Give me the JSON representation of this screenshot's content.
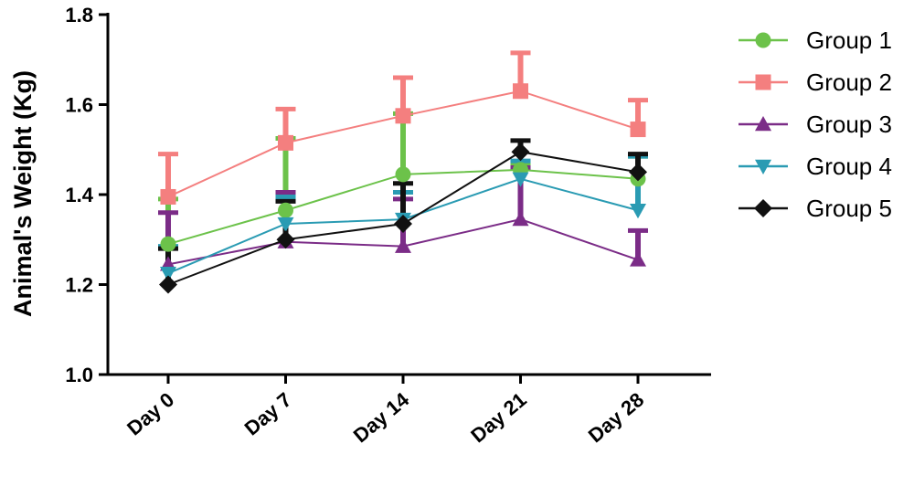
{
  "chart_data": {
    "type": "line",
    "title": "",
    "xlabel": "",
    "ylabel": "Animal's Weight (Kg)",
    "categories": [
      "Day 0",
      "Day 7",
      "Day 14",
      "Day 21",
      "Day 28"
    ],
    "ylim": [
      1.0,
      1.8
    ],
    "yticks": [
      "1.0",
      "1.2",
      "1.4",
      "1.6",
      "1.8"
    ],
    "grid": false,
    "legend_position": "right",
    "series": [
      {
        "name": "Group 1",
        "color": "#6cc24a",
        "marker": "circle",
        "values": [
          1.29,
          1.365,
          1.445,
          1.455,
          1.435
        ],
        "errors": [
          0.1,
          0.16,
          0.135,
          0.01,
          0.05
        ]
      },
      {
        "name": "Group 2",
        "color": "#f47f7f",
        "marker": "square",
        "values": [
          1.395,
          1.515,
          1.575,
          1.63,
          1.545
        ],
        "errors": [
          0.095,
          0.075,
          0.085,
          0.085,
          0.065
        ]
      },
      {
        "name": "Group 3",
        "color": "#7b2c87",
        "marker": "triangle-up",
        "values": [
          1.245,
          1.295,
          1.285,
          1.345,
          1.255
        ],
        "errors": [
          0.115,
          0.11,
          0.105,
          0.115,
          0.065
        ]
      },
      {
        "name": "Group 4",
        "color": "#2a9bb3",
        "marker": "triangle-down",
        "values": [
          1.225,
          1.335,
          1.345,
          1.435,
          1.365
        ],
        "errors": [
          0.06,
          0.06,
          0.06,
          0.04,
          0.12
        ]
      },
      {
        "name": "Group 5",
        "color": "#111111",
        "marker": "diamond",
        "values": [
          1.2,
          1.3,
          1.335,
          1.495,
          1.45
        ],
        "errors": [
          0.08,
          0.085,
          0.09,
          0.025,
          0.04
        ]
      }
    ]
  }
}
